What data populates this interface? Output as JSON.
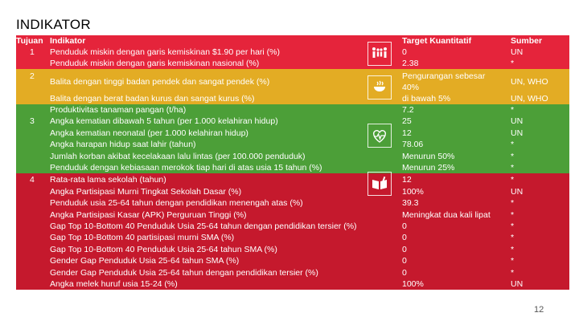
{
  "title": "INDIKATOR",
  "page_number": "12",
  "headers": {
    "tujuan": "Tujuan",
    "indikator": "Indikator",
    "target": "Target Kuantitatif",
    "sumber": "Sumber"
  },
  "goals": [
    "1",
    "2",
    "3",
    "4"
  ],
  "icons": [
    "sdg-1-no-poverty",
    "sdg-2-zero-hunger",
    "sdg-3-good-health",
    "sdg-4-quality-education"
  ],
  "colors": {
    "red": "#e5243b",
    "yellow": "#e3ac24",
    "green": "#4c9f38",
    "darkred": "#c5192d"
  },
  "rows": [
    {
      "indikator": "Penduduk miskin dengan garis kemiskinan $1.90 per hari (%)",
      "target": "0",
      "sumber": "UN"
    },
    {
      "indikator": "Penduduk miskin dengan garis kemiskinan nasional (%)",
      "target": "2.38",
      "sumber": "*"
    },
    {
      "indikator": "Balita dengan tinggi badan pendek dan sangat pendek (%)",
      "target": "Pengurangan sebesar",
      "target2": "40%",
      "sumber": "UN, WHO"
    },
    {
      "indikator": "Balita dengan berat badan kurus dan sangat kurus (%)",
      "target": "di bawah 5%",
      "sumber": "UN, WHO"
    },
    {
      "indikator": "Produktivitas tanaman pangan (t/ha)",
      "target": "7.2",
      "sumber": "*"
    },
    {
      "indikator": "Angka kematian dibawah 5 tahun (per 1.000 kelahiran hidup)",
      "target": "25",
      "sumber": "UN"
    },
    {
      "indikator": "Angka kematian neonatal (per 1.000 kelahiran hidup)",
      "target": "12",
      "sumber": "UN"
    },
    {
      "indikator": "Angka harapan hidup saat lahir (tahun)",
      "target": "78.06",
      "sumber": "*"
    },
    {
      "indikator": "Jumlah korban akibat kecelakaan lalu lintas (per 100.000 penduduk)",
      "target": "Menurun 50%",
      "sumber": "*"
    },
    {
      "indikator": "Penduduk dengan kebiasaan merokok tiap hari di atas usia 15 tahun (%)",
      "target": "Menurun 25%",
      "sumber": "*"
    },
    {
      "indikator": "Rata-rata lama sekolah (tahun)",
      "target": "12",
      "sumber": "*"
    },
    {
      "indikator": "Angka Partisipasi Murni Tingkat Sekolah Dasar (%)",
      "target": "100%",
      "sumber": "UN"
    },
    {
      "indikator": "Penduduk usia 25-64 tahun dengan pendidikan menengah atas (%)",
      "target": "39.3",
      "sumber": "*"
    },
    {
      "indikator": "Angka Partisipasi Kasar (APK) Perguruan Tinggi (%)",
      "target": "Meningkat dua kali lipat",
      "sumber": "*"
    },
    {
      "indikator": "Gap Top 10-Bottom 40 Penduduk Usia 25-64 tahun dengan pendidikan tersier (%)",
      "target": "0",
      "sumber": "*"
    },
    {
      "indikator": "Gap Top 10-Bottom 40 partisipasi murni SMA (%)",
      "target": "0",
      "sumber": "*"
    },
    {
      "indikator": "Gap Top 10-Bottom 40 Penduduk Usia 25-64 tahun SMA (%)",
      "target": "0",
      "sumber": "*"
    },
    {
      "indikator": "Gender Gap Penduduk Usia 25-64 tahun SMA (%)",
      "target": "0",
      "sumber": "*"
    },
    {
      "indikator": "Gender Gap Penduduk Usia 25-64 tahun dengan pendidikan tersier (%)",
      "target": "0",
      "sumber": "*"
    },
    {
      "indikator": "Angka melek huruf usia 15-24 (%)",
      "target": "100%",
      "sumber": "UN"
    }
  ]
}
